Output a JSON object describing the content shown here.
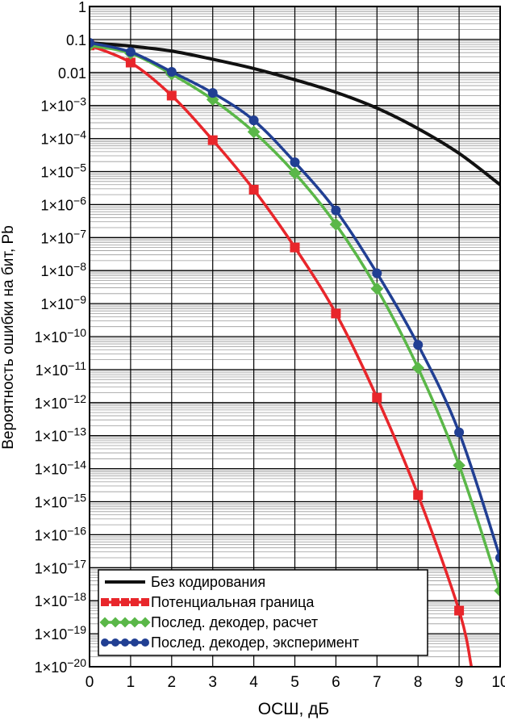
{
  "chart_data": {
    "type": "line",
    "xlabel": "ОСШ, дБ",
    "ylabel": "Вероятность ошибки на бит, Pb",
    "xlim": [
      0,
      10
    ],
    "ylim_log10": [
      -20,
      0
    ],
    "y_scale": "log",
    "grid": true,
    "legend_position": "bottom-left",
    "x_ticks": [
      "0",
      "1",
      "2",
      "3",
      "4",
      "5",
      "6",
      "7",
      "8",
      "9",
      "10"
    ],
    "y_ticks": [
      {
        "exp": 0,
        "mant": "1",
        "sup": ""
      },
      {
        "exp": -1,
        "mant": "0.1",
        "sup": ""
      },
      {
        "exp": -2,
        "mant": "0.01",
        "sup": ""
      },
      {
        "exp": -3,
        "mant": "1×10",
        "sup": "−3"
      },
      {
        "exp": -4,
        "mant": "1×10",
        "sup": "−4"
      },
      {
        "exp": -5,
        "mant": "1×10",
        "sup": "−5"
      },
      {
        "exp": -6,
        "mant": "1×10",
        "sup": "−6"
      },
      {
        "exp": -7,
        "mant": "1×10",
        "sup": "−7"
      },
      {
        "exp": -8,
        "mant": "1×10",
        "sup": "−8"
      },
      {
        "exp": -9,
        "mant": "1×10",
        "sup": "−9"
      },
      {
        "exp": -10,
        "mant": "1×10",
        "sup": "−10"
      },
      {
        "exp": -11,
        "mant": "1×10",
        "sup": "−11"
      },
      {
        "exp": -12,
        "mant": "1×10",
        "sup": "−12"
      },
      {
        "exp": -13,
        "mant": "1×10",
        "sup": "−13"
      },
      {
        "exp": -14,
        "mant": "1×10",
        "sup": "−14"
      },
      {
        "exp": -15,
        "mant": "1×10",
        "sup": "−15"
      },
      {
        "exp": -16,
        "mant": "1×10",
        "sup": "−16"
      },
      {
        "exp": -17,
        "mant": "1×10",
        "sup": "−17"
      },
      {
        "exp": -18,
        "mant": "1×10",
        "sup": "−18"
      },
      {
        "exp": -19,
        "mant": "1×10",
        "sup": "−19"
      },
      {
        "exp": -20,
        "mant": "1×10",
        "sup": "−20"
      }
    ],
    "series": [
      {
        "name": "Без кодирования",
        "color": "#111111",
        "marker": "none",
        "x": [
          0,
          1,
          2,
          3,
          4,
          5,
          6,
          7,
          8,
          9,
          10
        ],
        "log10_y": [
          -1.1,
          -1.2,
          -1.35,
          -1.6,
          -1.88,
          -2.22,
          -2.6,
          -3.08,
          -3.7,
          -4.45,
          -5.4
        ]
      },
      {
        "name": "Потенциальная граница",
        "color": "#e8262b",
        "marker": "square",
        "x": [
          0,
          1,
          2,
          3,
          4,
          5,
          6,
          7,
          8,
          9,
          9.3
        ],
        "log10_y": [
          -1.18,
          -1.7,
          -2.7,
          -4.05,
          -5.55,
          -7.3,
          -9.3,
          -11.85,
          -14.8,
          -18.3,
          -20.0
        ],
        "marker_count": 10
      },
      {
        "name": "Послед. декодер, расчет",
        "color": "#5ab748",
        "marker": "diamond",
        "x": [
          0,
          1,
          2,
          3,
          4,
          5,
          6,
          7,
          8,
          9,
          10
        ],
        "log10_y": [
          -1.18,
          -1.42,
          -2.05,
          -2.82,
          -3.8,
          -5.05,
          -6.6,
          -8.55,
          -10.95,
          -13.9,
          -17.7
        ]
      },
      {
        "name": "Послед. декодер, эксперимент",
        "color": "#213f93",
        "marker": "circle",
        "x": [
          0,
          1,
          2,
          3,
          4,
          5,
          6,
          7,
          8,
          9,
          10
        ],
        "log10_y": [
          -1.1,
          -1.38,
          -1.98,
          -2.62,
          -3.45,
          -4.72,
          -6.18,
          -8.08,
          -10.25,
          -12.9,
          -16.7
        ]
      }
    ]
  }
}
